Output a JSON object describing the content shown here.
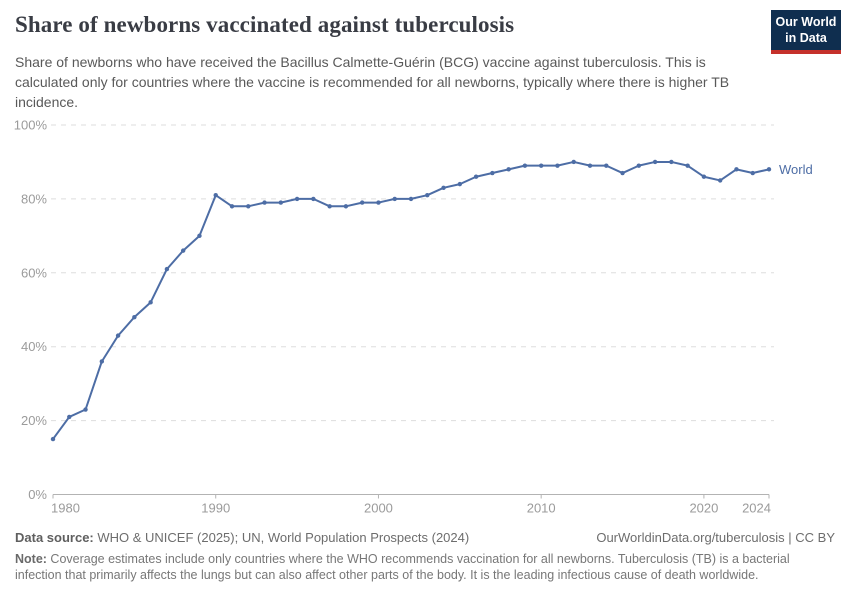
{
  "header": {
    "title": "Share of newborns vaccinated against tuberculosis",
    "subtitle": "Share of newborns who have received the Bacillus Calmette-Guérin (BCG) vaccine against tuberculosis. This is calculated only for countries where the vaccine is recommended for all newborns, typically where there is higher TB incidence.",
    "logo": {
      "line1": "Our World",
      "line2": "in Data"
    }
  },
  "colors": {
    "line": "#4d6da5",
    "grid": "#dddddd",
    "axis": "#b3b3b3",
    "tick_label": "#9b9b9b",
    "logo_navy": "#0f2e4f",
    "logo_red": "#c5312b"
  },
  "chart_data": {
    "type": "line",
    "title": "Share of newborns vaccinated against tuberculosis",
    "xlabel": "",
    "ylabel": "",
    "xlim": [
      1980,
      2024
    ],
    "ylim": [
      0,
      100
    ],
    "x_ticks": [
      1980,
      1990,
      2000,
      2010,
      2020,
      2024
    ],
    "y_ticks": [
      0,
      20,
      40,
      60,
      80,
      100
    ],
    "y_tick_suffix": "%",
    "grid": "dashed-horizontal",
    "legend_position": "end-of-line-label",
    "series": [
      {
        "name": "World",
        "color": "#4d6da5",
        "x": [
          1980,
          1981,
          1982,
          1983,
          1984,
          1985,
          1986,
          1987,
          1988,
          1989,
          1990,
          1991,
          1992,
          1993,
          1994,
          1995,
          1996,
          1997,
          1998,
          1999,
          2000,
          2001,
          2002,
          2003,
          2004,
          2005,
          2006,
          2007,
          2008,
          2009,
          2010,
          2011,
          2012,
          2013,
          2014,
          2015,
          2016,
          2017,
          2018,
          2019,
          2020,
          2021,
          2022,
          2023,
          2024
        ],
        "values": [
          15,
          21,
          23,
          36,
          43,
          48,
          52,
          61,
          66,
          70,
          81,
          78,
          78,
          79,
          79,
          80,
          80,
          78,
          78,
          79,
          79,
          80,
          80,
          81,
          83,
          84,
          86,
          87,
          88,
          89,
          89,
          89,
          90,
          89,
          89,
          87,
          89,
          90,
          90,
          89,
          86,
          85,
          88,
          87,
          88
        ]
      }
    ]
  },
  "footer": {
    "datasource_label": "Data source:",
    "datasource_text": " WHO & UNICEF (2025); UN, World Population Prospects (2024)",
    "attribution": "OurWorldinData.org/tuberculosis | CC BY",
    "note_label": "Note:",
    "note_text": " Coverage estimates include only countries where the WHO recommends vaccination for all newborns. Tuberculosis (TB) is a bacterial infection that primarily affects the lungs but can also affect other parts of the body. It is the leading infectious cause of death worldwide."
  }
}
